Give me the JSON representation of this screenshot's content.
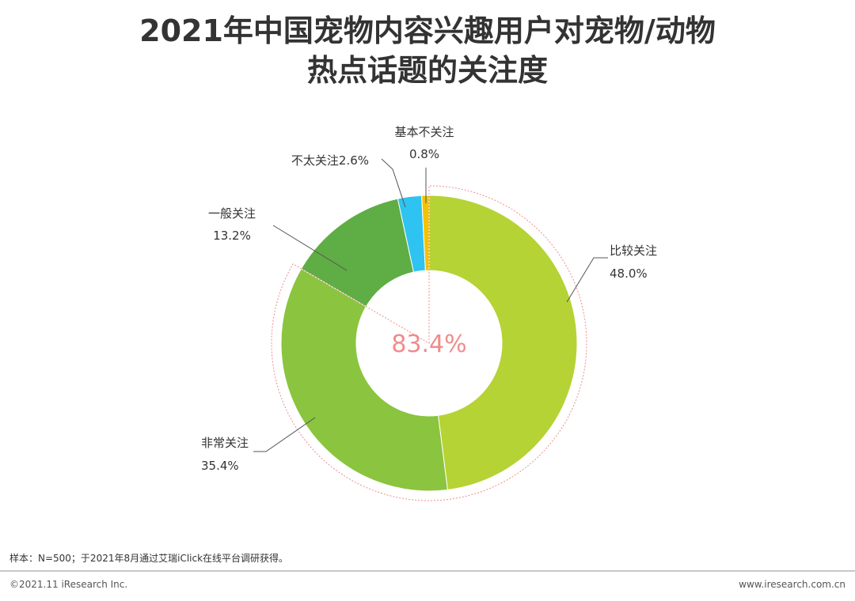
{
  "title": {
    "line1": "2021年中国宠物内容兴趣用户对宠物/动物",
    "line2": "热点话题的关注度"
  },
  "chart_data": {
    "type": "pie",
    "style": "donut",
    "slices": [
      {
        "label": "比较关注",
        "value": 48.0,
        "value_text": "48.0%",
        "color": "#b5d335"
      },
      {
        "label": "非常关注",
        "value": 35.4,
        "value_text": "35.4%",
        "color": "#8bc43f"
      },
      {
        "label": "一般关注",
        "value": 13.2,
        "value_text": "13.2%",
        "color": "#5fad45"
      },
      {
        "label": "不太关注",
        "value": 2.6,
        "value_text": "2.6%",
        "color": "#2ec3f0"
      },
      {
        "label": "基本不关注",
        "value": 0.8,
        "value_text": "0.8%",
        "color": "#f2c300"
      }
    ],
    "center_label": "83.4%",
    "center_label_color": "#f08c8c",
    "highlight_ring_color": "#f08c8c"
  },
  "footer": {
    "source": "样本：N=500；于2021年8月通过艾瑞iClick在线平台调研获得。",
    "copyright": "©2021.11 iResearch Inc.",
    "website": "www.iresearch.com.cn"
  }
}
